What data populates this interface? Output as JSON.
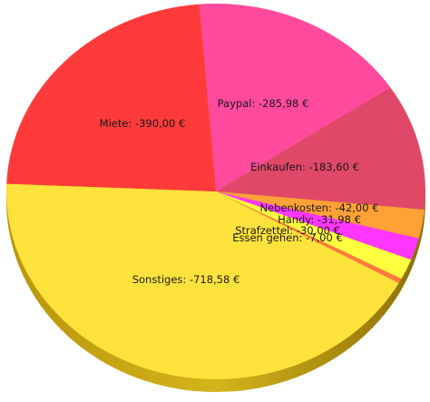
{
  "chart_data": {
    "type": "pie",
    "currency": "€",
    "slices": [
      {
        "label": "Paypal:",
        "value_text": "-285,98 €",
        "value": -285.98,
        "color": "#ff4a9e"
      },
      {
        "label": "Einkaufen:",
        "value_text": "-183,60 €",
        "value": -183.6,
        "color": "#e04868"
      },
      {
        "label": "Nebenkosten:",
        "value_text": "-42,00 €",
        "value": -42.0,
        "color": "#ffa136"
      },
      {
        "label": "Handy:",
        "value_text": "-31,98 €",
        "value": -31.98,
        "color": "#ff36ff"
      },
      {
        "label": "Strafzettel:",
        "value_text": "-30,00 €",
        "value": -30.0,
        "color": "#ffff40"
      },
      {
        "label": "Essen gehen:",
        "value_text": "-7,00 €",
        "value": -7.0,
        "color": "#ff7a3a"
      },
      {
        "label": "Sonstiges:",
        "value_text": "-718,58 €",
        "value": -718.58,
        "color": "#ffe23c"
      },
      {
        "label": "Miete:",
        "value_text": "-390,00 €",
        "value": -390.0,
        "color": "#ff3a3a"
      }
    ]
  }
}
